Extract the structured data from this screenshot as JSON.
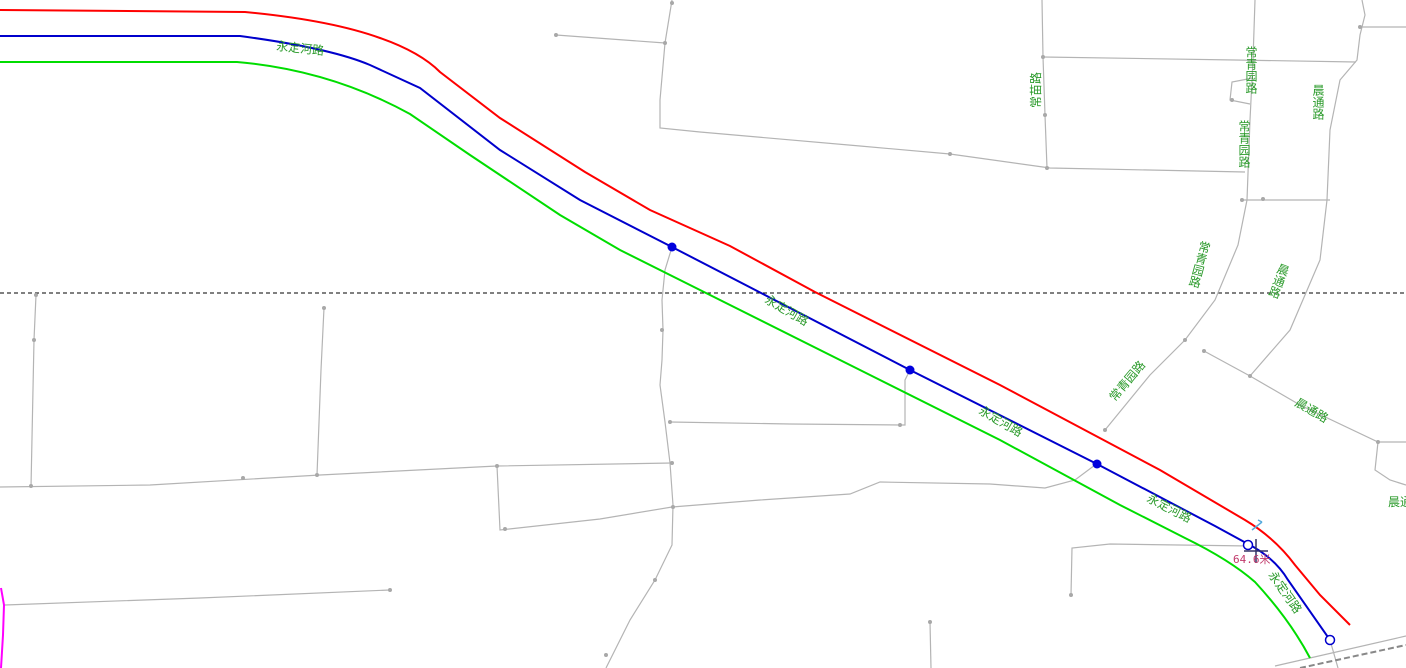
{
  "map": {
    "colors": {
      "background": "#ffffff",
      "road": "#b4b4b4",
      "label": "#2a9a2a",
      "offset_left": "#ff0000",
      "centerline": "#0000cc",
      "offset_right": "#00dd00",
      "measure_text": "#c0386a",
      "crosshair": "#333366",
      "crosshair_tick": "#55aadd",
      "guide_line": "#000000",
      "boundary": "#ff00ff"
    },
    "labels": {
      "yongding_1": "永定河路",
      "yongding_2": "永定河路",
      "yongding_3": "永定河路",
      "yongding_4": "永定河路",
      "yongding_5": "永定河路",
      "changqingyuan_1": "常青园路",
      "changqingyuan_2": "常青园路",
      "changqingyuan_3": "常青园路",
      "changqingyuan_4": "常青园路",
      "changmiao": "常苗路",
      "chentong_1": "晨通路",
      "chentong_2": "晨通路",
      "chentong_3": "晨通路",
      "chentong_4": "晨通"
    },
    "measure_text": "64.6米"
  }
}
